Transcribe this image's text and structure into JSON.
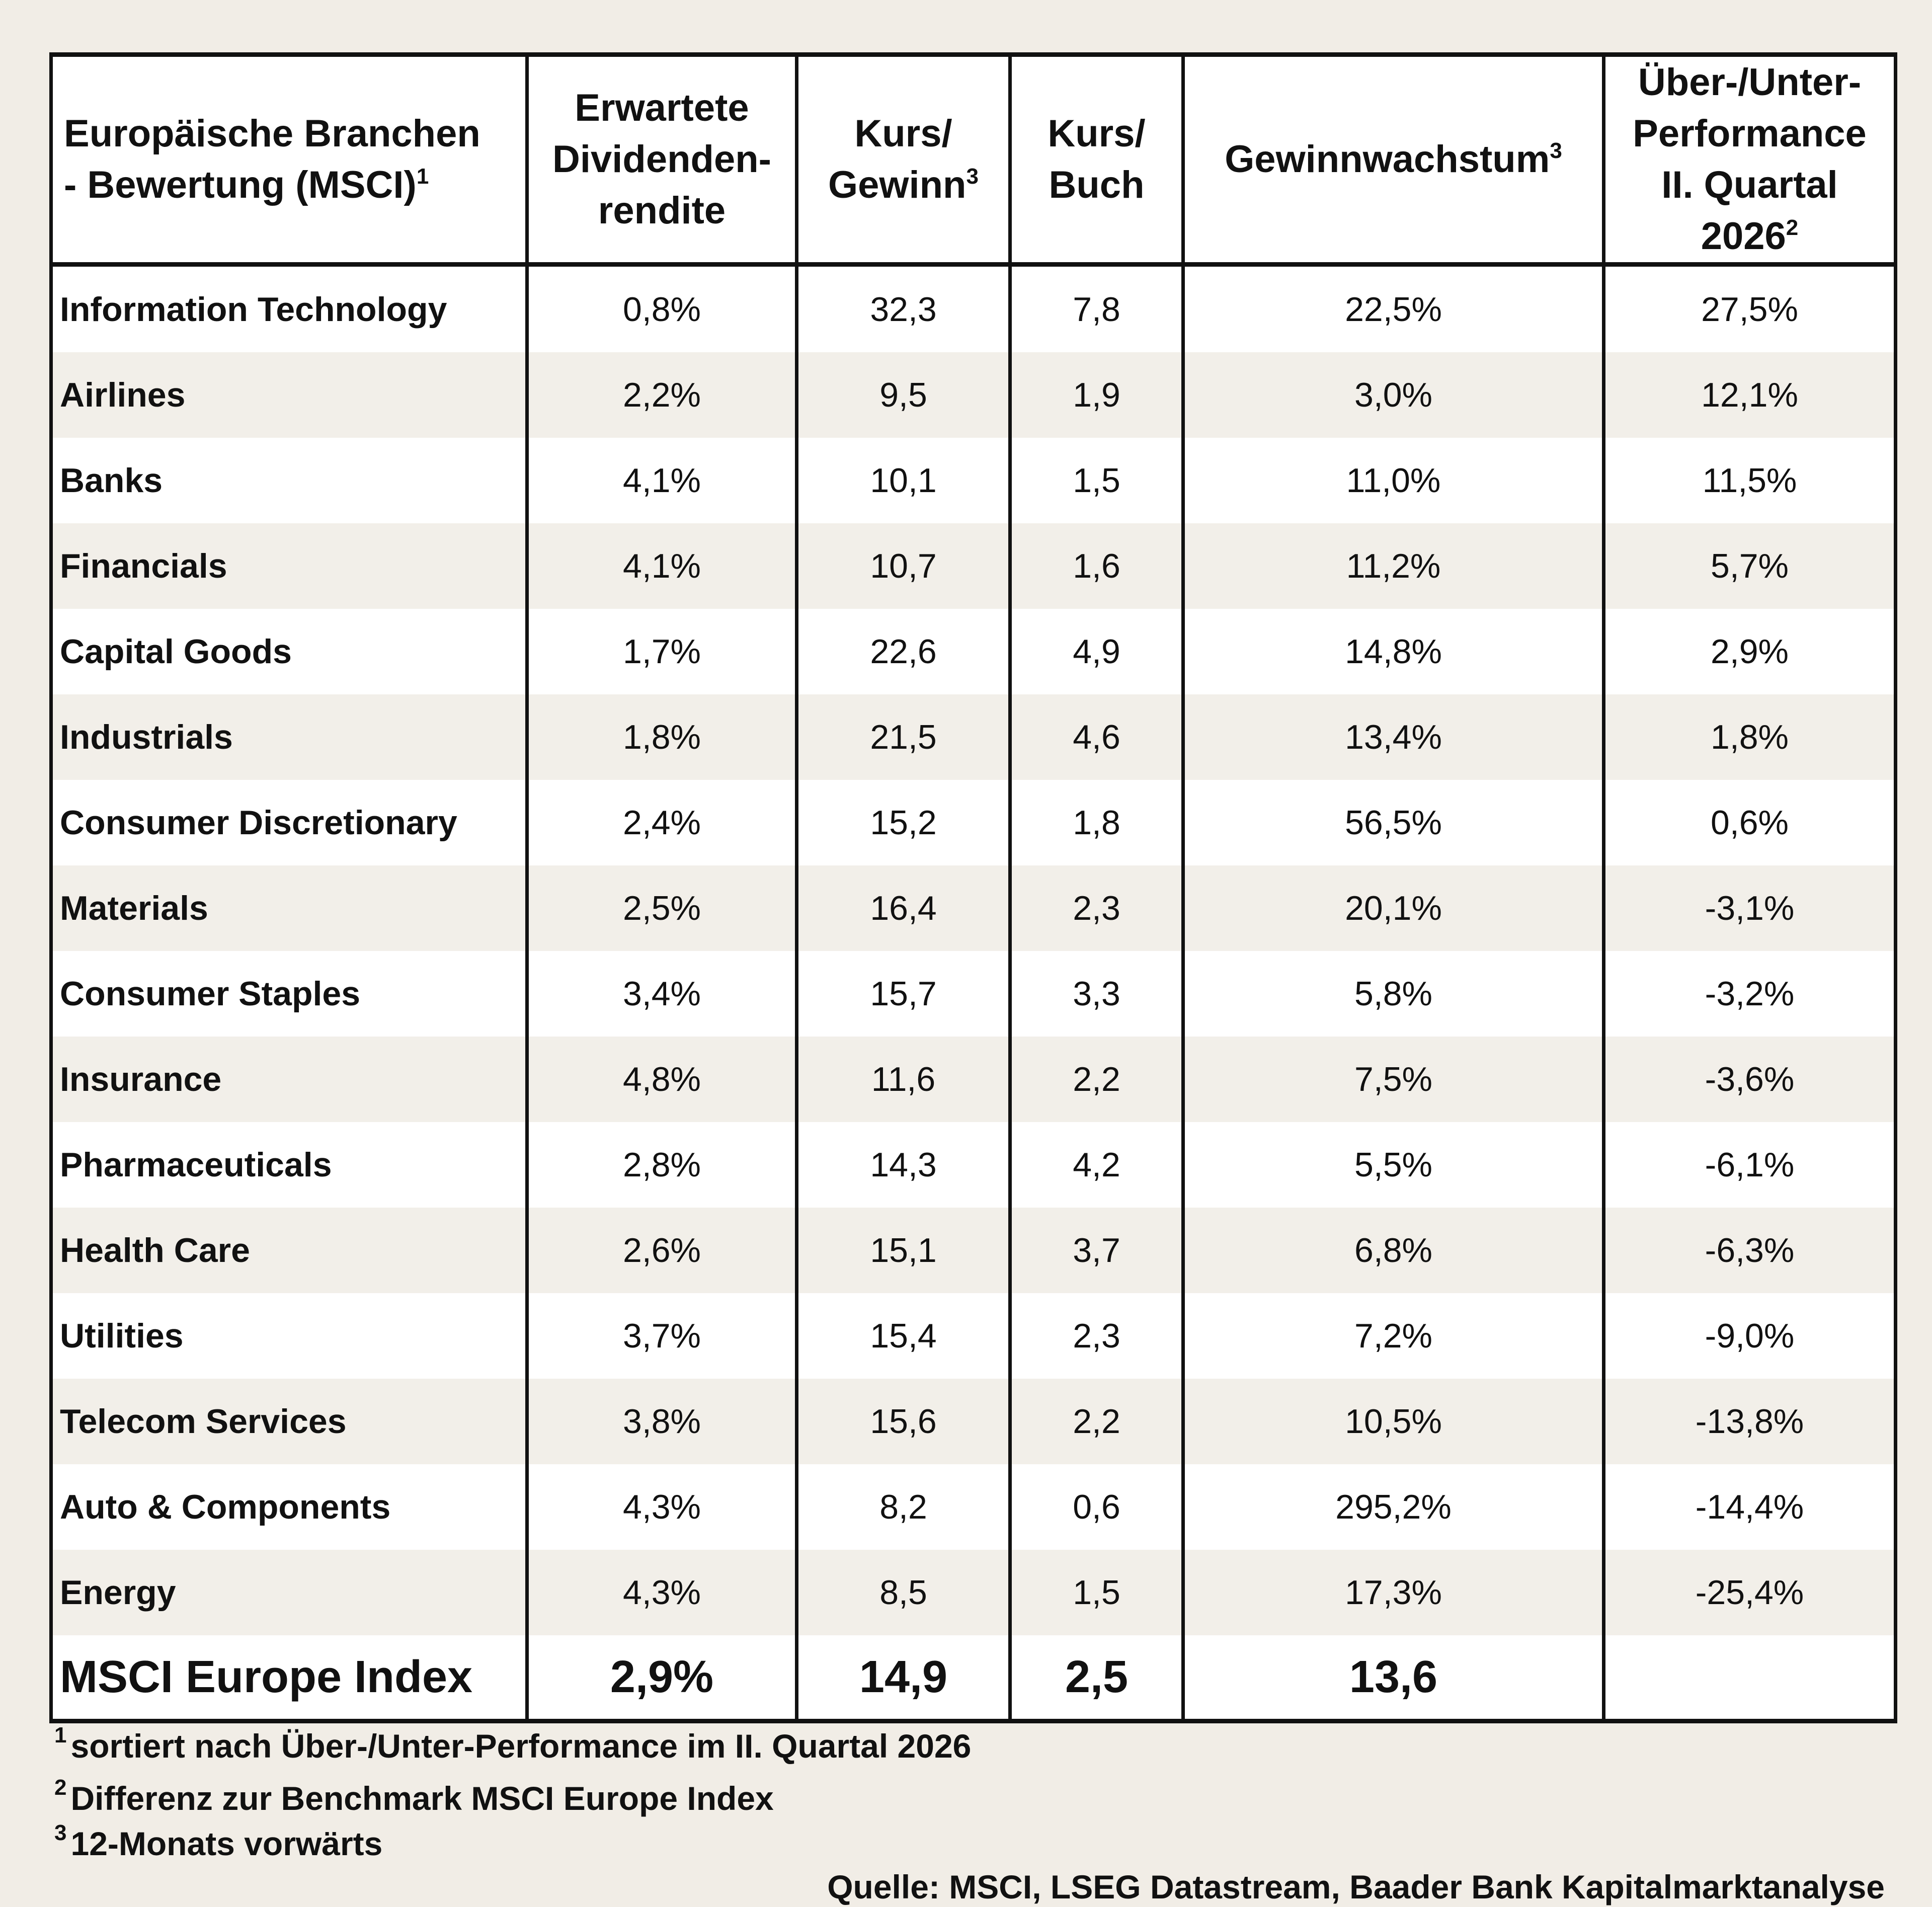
{
  "table": {
    "headers": {
      "sector": {
        "line1": "Europäische Branchen",
        "line2": "- Bewertung (MSCI)",
        "sup": "1"
      },
      "dividend": {
        "line1": "Erwartete",
        "line2": "Dividenden-",
        "line3": "rendite"
      },
      "pe": {
        "line1": "Kurs/",
        "line2": "Gewinn",
        "sup": "3"
      },
      "pb": {
        "line1": "Kurs/",
        "line2": "Buch"
      },
      "growth": {
        "line1": "Gewinnwachstum",
        "sup": "3"
      },
      "performance": {
        "line1": "Über-/Unter-",
        "line2": "Performance",
        "line3": "II. Quartal",
        "line4": "2026",
        "sup": "2"
      }
    },
    "rows": [
      {
        "sector": "Information Technology",
        "dividend": "0,8%",
        "pe": "32,3",
        "pb": "7,8",
        "growth": "22,5%",
        "performance": "27,5%"
      },
      {
        "sector": "Airlines",
        "dividend": "2,2%",
        "pe": "9,5",
        "pb": "1,9",
        "growth": "3,0%",
        "performance": "12,1%"
      },
      {
        "sector": "Banks",
        "dividend": "4,1%",
        "pe": "10,1",
        "pb": "1,5",
        "growth": "11,0%",
        "performance": "11,5%"
      },
      {
        "sector": "Financials",
        "dividend": "4,1%",
        "pe": "10,7",
        "pb": "1,6",
        "growth": "11,2%",
        "performance": "5,7%"
      },
      {
        "sector": "Capital Goods",
        "dividend": "1,7%",
        "pe": "22,6",
        "pb": "4,9",
        "growth": "14,8%",
        "performance": "2,9%"
      },
      {
        "sector": "Industrials",
        "dividend": "1,8%",
        "pe": "21,5",
        "pb": "4,6",
        "growth": "13,4%",
        "performance": "1,8%"
      },
      {
        "sector": "Consumer Discretionary",
        "dividend": "2,4%",
        "pe": "15,2",
        "pb": "1,8",
        "growth": "56,5%",
        "performance": "0,6%"
      },
      {
        "sector": "Materials",
        "dividend": "2,5%",
        "pe": "16,4",
        "pb": "2,3",
        "growth": "20,1%",
        "performance": "-3,1%"
      },
      {
        "sector": "Consumer Staples",
        "dividend": "3,4%",
        "pe": "15,7",
        "pb": "3,3",
        "growth": "5,8%",
        "performance": "-3,2%"
      },
      {
        "sector": "Insurance",
        "dividend": "4,8%",
        "pe": "11,6",
        "pb": "2,2",
        "growth": "7,5%",
        "performance": "-3,6%"
      },
      {
        "sector": "Pharmaceuticals",
        "dividend": "2,8%",
        "pe": "14,3",
        "pb": "4,2",
        "growth": "5,5%",
        "performance": "-6,1%"
      },
      {
        "sector": "Health Care",
        "dividend": "2,6%",
        "pe": "15,1",
        "pb": "3,7",
        "growth": "6,8%",
        "performance": "-6,3%"
      },
      {
        "sector": "Utilities",
        "dividend": "3,7%",
        "pe": "15,4",
        "pb": "2,3",
        "growth": "7,2%",
        "performance": "-9,0%"
      },
      {
        "sector": "Telecom Services",
        "dividend": "3,8%",
        "pe": "15,6",
        "pb": "2,2",
        "growth": "10,5%",
        "performance": "-13,8%"
      },
      {
        "sector": "Auto & Components",
        "dividend": "4,3%",
        "pe": "8,2",
        "pb": "0,6",
        "growth": "295,2%",
        "performance": "-14,4%"
      },
      {
        "sector": "Energy",
        "dividend": "4,3%",
        "pe": "8,5",
        "pb": "1,5",
        "growth": "17,3%",
        "performance": "-25,4%"
      }
    ],
    "total": {
      "sector": "MSCI Europe Index",
      "dividend": "2,9%",
      "pe": "14,9",
      "pb": "2,5",
      "growth": "13,6",
      "performance": ""
    }
  },
  "footnotes": [
    {
      "num": "1",
      "text": "sortiert nach Über-/Unter-Performance im II. Quartal 2026"
    },
    {
      "num": "2",
      "text": "Differenz zur Benchmark MSCI Europe Index"
    },
    {
      "num": "3",
      "text": "12-Monats vorwärts"
    }
  ],
  "source": "Quelle: MSCI, LSEG Datastream, Baader Bank Kapitalmarktanalyse",
  "colors": {
    "background": "#f1ede6",
    "row_white": "#ffffff",
    "row_shaded": "#f2efe9",
    "border": "#111111"
  }
}
